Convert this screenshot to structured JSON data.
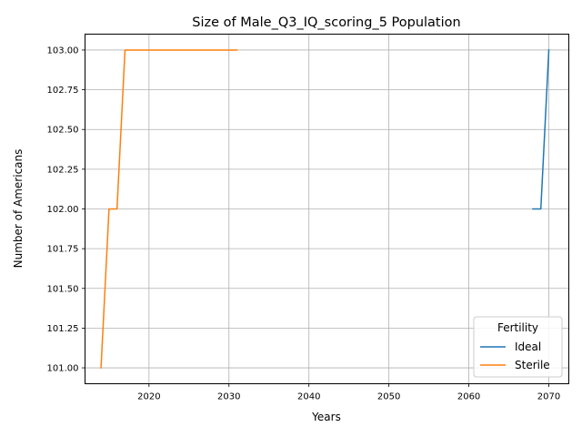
{
  "chart_data": {
    "type": "line",
    "title": "Size of Male_Q3_IQ_scoring_5 Population",
    "xlabel": "Years",
    "ylabel": "Number of Americans",
    "xlim": [
      2012,
      2072.5
    ],
    "ylim": [
      100.9,
      103.1
    ],
    "xticks": [
      2020,
      2030,
      2040,
      2050,
      2060,
      2070
    ],
    "yticks": [
      101.0,
      101.25,
      101.5,
      101.75,
      102.0,
      102.25,
      102.5,
      102.75,
      103.0
    ],
    "ytick_labels": [
      "101.00",
      "101.25",
      "101.50",
      "101.75",
      "102.00",
      "102.25",
      "102.50",
      "102.75",
      "103.00"
    ],
    "grid": true,
    "legend": {
      "title": "Fertility",
      "placement": "lower-right"
    },
    "series": [
      {
        "name": "Ideal",
        "color": "#1f77b4",
        "x": [
          2068,
          2069,
          2070
        ],
        "y": [
          102,
          102,
          103
        ]
      },
      {
        "name": "Sterile",
        "color": "#ff7f0e",
        "x": [
          2014,
          2015,
          2016,
          2017,
          2018,
          2019,
          2020,
          2021,
          2022,
          2023,
          2024,
          2025,
          2026,
          2027,
          2028,
          2029,
          2030,
          2031
        ],
        "y": [
          101,
          102,
          102,
          103,
          103,
          103,
          103,
          103,
          103,
          103,
          103,
          103,
          103,
          103,
          103,
          103,
          103,
          103
        ]
      }
    ]
  }
}
